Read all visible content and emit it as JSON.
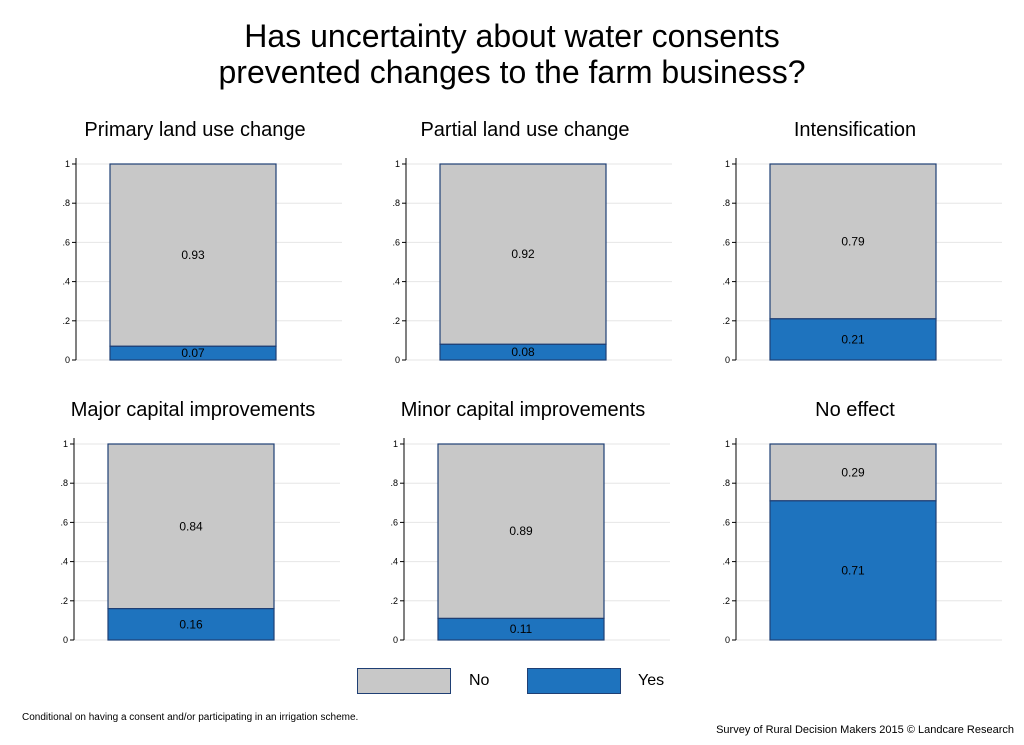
{
  "title_line1": "Has uncertainty about water consents",
  "title_line2": "prevented changes to the farm business?",
  "footnote": "Conditional on having a consent and/or participating in an irrigation scheme.",
  "source": "Survey of Rural Decision Makers 2015 © Landcare Research",
  "colors": {
    "no": "#c8c8c8",
    "yes": "#1e73be",
    "outline": "#1f3f74",
    "grid": "#e6e6e6"
  },
  "legend": {
    "no_label": "No",
    "yes_label": "Yes"
  },
  "chart_data": [
    {
      "type": "bar",
      "title": "Primary land use change",
      "stacked": true,
      "ylim": [
        0,
        1
      ],
      "yticks": [
        "0",
        ".2",
        ".4",
        ".6",
        ".8",
        "1"
      ],
      "series": [
        {
          "name": "Yes",
          "values": [
            0.07
          ]
        },
        {
          "name": "No",
          "values": [
            0.93
          ]
        }
      ],
      "labels": {
        "yes": "0.07",
        "no": "0.93"
      }
    },
    {
      "type": "bar",
      "title": "Partial land use change",
      "stacked": true,
      "ylim": [
        0,
        1
      ],
      "yticks": [
        "0",
        ".2",
        ".4",
        ".6",
        ".8",
        "1"
      ],
      "series": [
        {
          "name": "Yes",
          "values": [
            0.08
          ]
        },
        {
          "name": "No",
          "values": [
            0.92
          ]
        }
      ],
      "labels": {
        "yes": "0.08",
        "no": "0.92"
      }
    },
    {
      "type": "bar",
      "title": "Intensification",
      "stacked": true,
      "ylim": [
        0,
        1
      ],
      "yticks": [
        "0",
        ".2",
        ".4",
        ".6",
        ".8",
        "1"
      ],
      "series": [
        {
          "name": "Yes",
          "values": [
            0.21
          ]
        },
        {
          "name": "No",
          "values": [
            0.79
          ]
        }
      ],
      "labels": {
        "yes": "0.21",
        "no": "0.79"
      }
    },
    {
      "type": "bar",
      "title": "Major capital improvements",
      "stacked": true,
      "ylim": [
        0,
        1
      ],
      "yticks": [
        "0",
        ".2",
        ".4",
        ".6",
        ".8",
        "1"
      ],
      "series": [
        {
          "name": "Yes",
          "values": [
            0.16
          ]
        },
        {
          "name": "No",
          "values": [
            0.84
          ]
        }
      ],
      "labels": {
        "yes": "0.16",
        "no": "0.84"
      }
    },
    {
      "type": "bar",
      "title": "Minor capital improvements",
      "stacked": true,
      "ylim": [
        0,
        1
      ],
      "yticks": [
        "0",
        ".2",
        ".4",
        ".6",
        ".8",
        "1"
      ],
      "series": [
        {
          "name": "Yes",
          "values": [
            0.11
          ]
        },
        {
          "name": "No",
          "values": [
            0.89
          ]
        }
      ],
      "labels": {
        "yes": "0.11",
        "no": "0.89"
      }
    },
    {
      "type": "bar",
      "title": "No effect",
      "stacked": true,
      "ylim": [
        0,
        1
      ],
      "yticks": [
        "0",
        ".2",
        ".4",
        ".6",
        ".8",
        "1"
      ],
      "series": [
        {
          "name": "Yes",
          "values": [
            0.71
          ]
        },
        {
          "name": "No",
          "values": [
            0.29
          ]
        }
      ],
      "labels": {
        "yes": "0.71",
        "no": "0.29"
      }
    }
  ]
}
